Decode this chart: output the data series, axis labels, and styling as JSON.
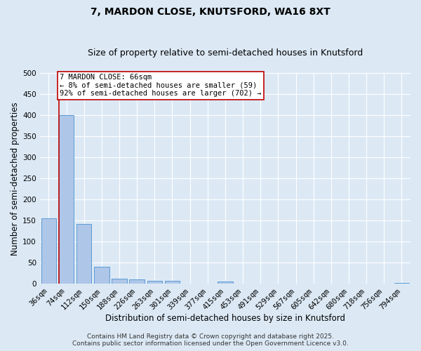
{
  "title_line1": "7, MARDON CLOSE, KNUTSFORD, WA16 8XT",
  "title_line2": "Size of property relative to semi-detached houses in Knutsford",
  "xlabel": "Distribution of semi-detached houses by size in Knutsford",
  "ylabel": "Number of semi-detached properties",
  "bar_labels": [
    "36sqm",
    "74sqm",
    "112sqm",
    "150sqm",
    "188sqm",
    "226sqm",
    "263sqm",
    "301sqm",
    "339sqm",
    "377sqm",
    "415sqm",
    "453sqm",
    "491sqm",
    "529sqm",
    "567sqm",
    "605sqm",
    "642sqm",
    "680sqm",
    "718sqm",
    "756sqm",
    "794sqm"
  ],
  "bar_values": [
    155,
    400,
    142,
    40,
    12,
    10,
    8,
    7,
    0,
    0,
    6,
    0,
    0,
    0,
    0,
    0,
    0,
    0,
    0,
    0,
    3
  ],
  "bar_color": "#aec6e8",
  "bar_edge_color": "#5b9bd5",
  "property_line_color": "#c00000",
  "annotation_text_line1": "7 MARDON CLOSE: 66sqm",
  "annotation_text_line2": "← 8% of semi-detached houses are smaller (59)",
  "annotation_text_line3": "92% of semi-detached houses are larger (702) →",
  "annotation_box_color": "#ffffff",
  "annotation_box_edge_color": "#c00000",
  "ylim": [
    0,
    500
  ],
  "yticks": [
    0,
    50,
    100,
    150,
    200,
    250,
    300,
    350,
    400,
    450,
    500
  ],
  "footer_line1": "Contains HM Land Registry data © Crown copyright and database right 2025.",
  "footer_line2": "Contains public sector information licensed under the Open Government Licence v3.0.",
  "background_color": "#dce9f5",
  "grid_color": "#ffffff",
  "title_fontsize": 10,
  "subtitle_fontsize": 9,
  "axis_label_fontsize": 8.5,
  "tick_fontsize": 7.5,
  "annotation_fontsize": 7.5,
  "footer_fontsize": 6.5
}
